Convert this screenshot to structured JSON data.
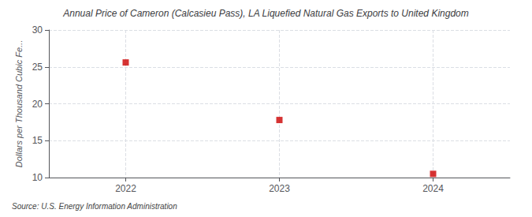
{
  "chart_data": {
    "type": "scatter",
    "title": "Annual Price of Cameron (Calcasieu Pass), LA Liquefied Natural Gas Exports to United Kingdom",
    "ylabel": "Dollars per Thousand Cubic Fe...",
    "source": "Source: U.S. Energy Information Administration",
    "x": [
      2022,
      2023,
      2024
    ],
    "values": [
      25.6,
      17.8,
      10.5
    ],
    "color": "#cc0000",
    "marker": "square",
    "xlim": [
      2021.5,
      2024.5
    ],
    "ylim": [
      10,
      30
    ],
    "xticks": [
      2022,
      2023,
      2024
    ],
    "yticks": [
      10,
      15,
      20,
      25,
      30
    ],
    "grid": true
  }
}
